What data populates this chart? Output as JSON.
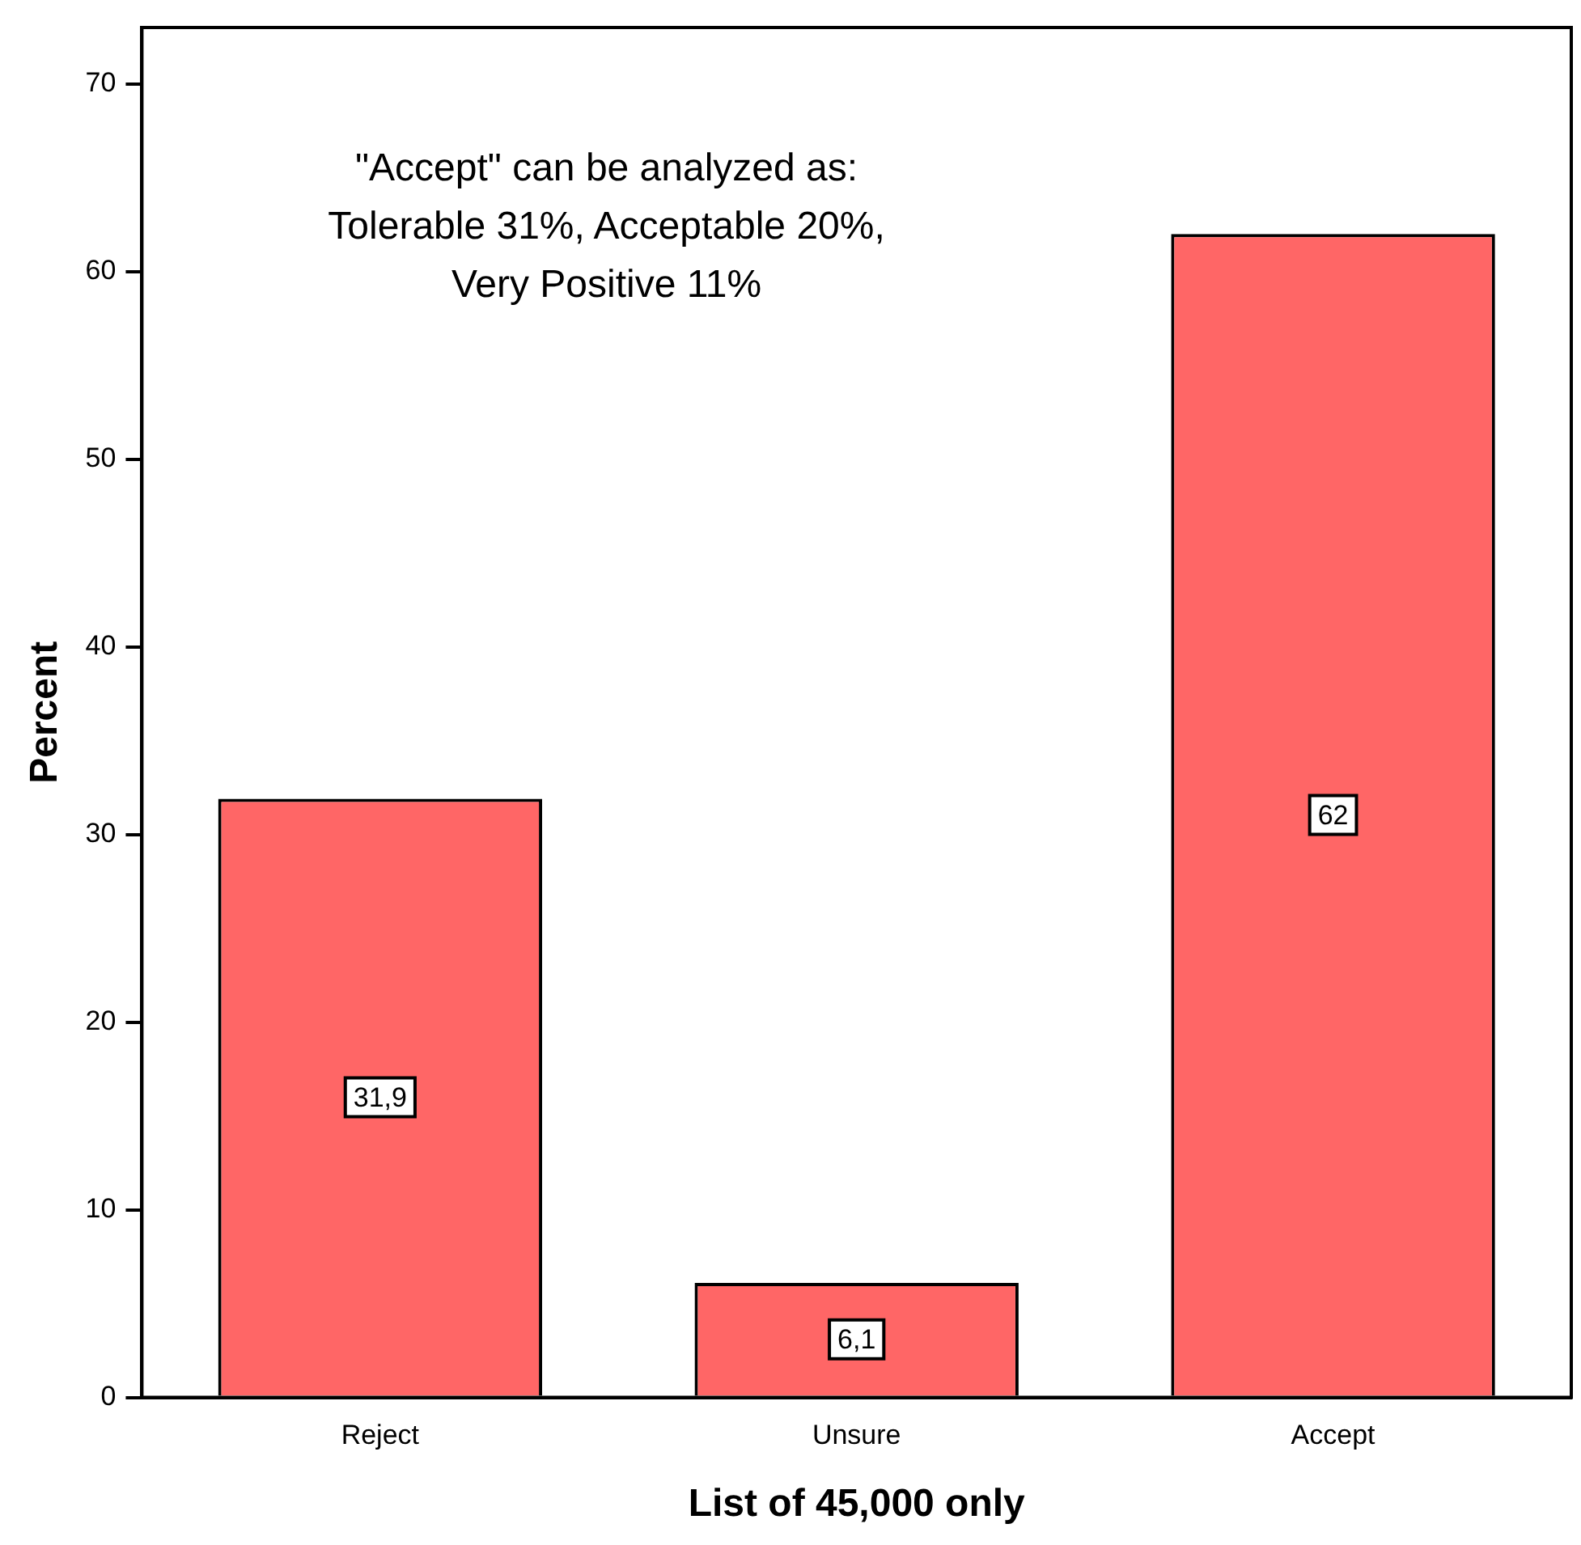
{
  "chart_data": {
    "type": "bar",
    "xlabel": "List of 45,000 only",
    "ylabel": "Percent",
    "categories": [
      "Reject",
      "Unsure",
      "Accept"
    ],
    "values": [
      31.9,
      6.1,
      62
    ],
    "value_labels": [
      "31,9",
      "6,1",
      "62"
    ],
    "color": "#ff6666",
    "ylim": [
      0,
      73
    ],
    "yticks": [
      0,
      10,
      20,
      30,
      40,
      50,
      60,
      70
    ],
    "grid": false,
    "legend": false,
    "annotations": [
      "\"Accept\" can be analyzed as:\nTolerable 31%, Acceptable 20%,\nVery Positive 11%"
    ]
  }
}
